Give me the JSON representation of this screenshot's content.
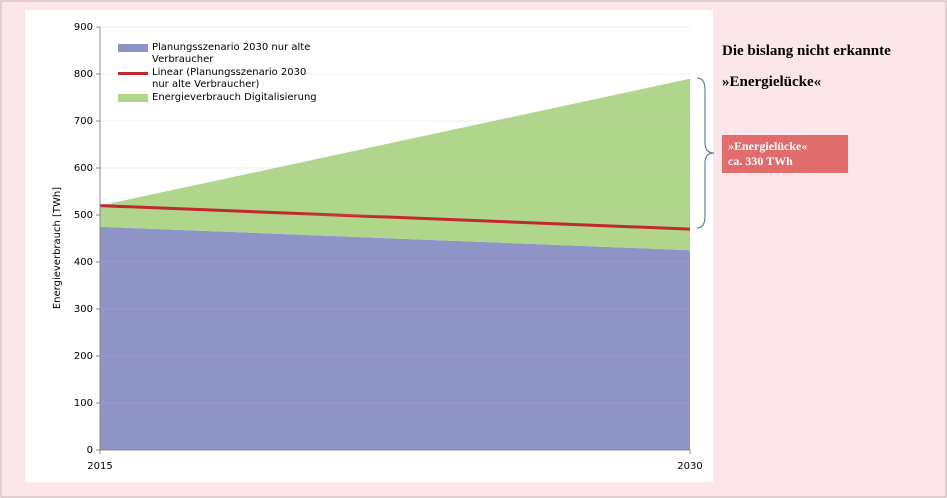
{
  "chart_data": {
    "type": "area",
    "x": [
      2015,
      2030
    ],
    "xlim": [
      2015,
      2030
    ],
    "xticks": [
      2015,
      2030
    ],
    "ylim": [
      0,
      900
    ],
    "yticks": [
      0,
      100,
      200,
      300,
      400,
      500,
      600,
      700,
      800,
      900
    ],
    "ylabel": "Energieverbrauch [TWh]",
    "series": [
      {
        "name": "Planungsszenario 2030 nur alte Verbraucher",
        "color": "#8f94c6",
        "values": [
          475,
          425
        ]
      },
      {
        "name": "Linear (Planungsszenario 2030 nur alte Verbraucher)",
        "color": "#c0282b",
        "type": "line",
        "values": [
          520,
          470
        ]
      },
      {
        "name": "Energieverbrauch Digitalisierung",
        "color": "#b0d68c",
        "stack_on": 0,
        "values": [
          45,
          365
        ]
      }
    ],
    "annotations": {
      "heading": [
        "Die bislang nicht erkannte",
        "»Energielücke«"
      ],
      "box": [
        "»Energielücke«",
        "ca. 330 TWh"
      ]
    }
  }
}
